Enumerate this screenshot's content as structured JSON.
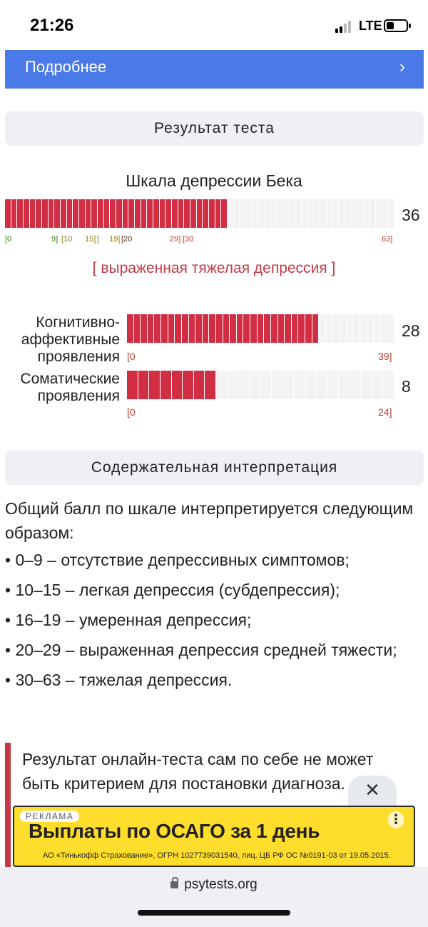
{
  "status_bar": {
    "time": "21:26",
    "network": "LTE"
  },
  "more_bar": {
    "label": "Подробнее",
    "chevron": "›"
  },
  "result_header": "Результат теста",
  "main_scale": {
    "title": "Шкала депрессии Бека",
    "score": "36",
    "score_value": 36,
    "max": 63,
    "ticks": [
      "[0",
      "9]",
      "[10",
      "15]",
      "[",
      "19]",
      "[20",
      "29]",
      "[30",
      "63]"
    ],
    "verdict": "[ выраженная тяжелая депрессия ]"
  },
  "subscales": [
    {
      "label_lines": [
        "Когнитивно-",
        "аффективные",
        "проявления"
      ],
      "score": "28",
      "score_value": 28,
      "max": 39,
      "min_label": "[0",
      "max_label": "39]"
    },
    {
      "label_lines": [
        "Соматические",
        "проявления"
      ],
      "score": "8",
      "score_value": 8,
      "max": 24,
      "min_label": "[0",
      "max_label": "24]"
    }
  ],
  "interpretation": {
    "header": "Содержательная интерпретация",
    "intro": "Общий балл по шкале интерпретируется следующим образом:",
    "items": [
      "• 0–9 – отсутствие депрессивных симптомов;",
      "• 10–15 – легкая депрессия (субдепрессия);",
      "• 16–19 – умеренная депрессия;",
      "• 20–29 – выраженная депрессия средней тяжести;",
      "• 30–63 – тяжелая депрессия."
    ]
  },
  "note": {
    "text": "Результат онлайн-теста сам по себе не может быть критерием для постановки диагноза."
  },
  "ad": {
    "close": "✕",
    "tag": "РЕКЛАМА",
    "headline": "Выплаты по ОСАГО за 1 день",
    "fine_print": "АО «Тинькофф Страхование», ОГРН 1027739031540, лиц. ЦБ РФ ОС №0191-03 от 19.05.2015.",
    "menu": "⋮"
  },
  "browser": {
    "url": "psytests.org"
  },
  "colors": {
    "accent_blue": "#4a7ae8",
    "bar_red": "#d12e44",
    "verdict_red": "#c53945",
    "ad_yellow": "#ffdd2d"
  }
}
